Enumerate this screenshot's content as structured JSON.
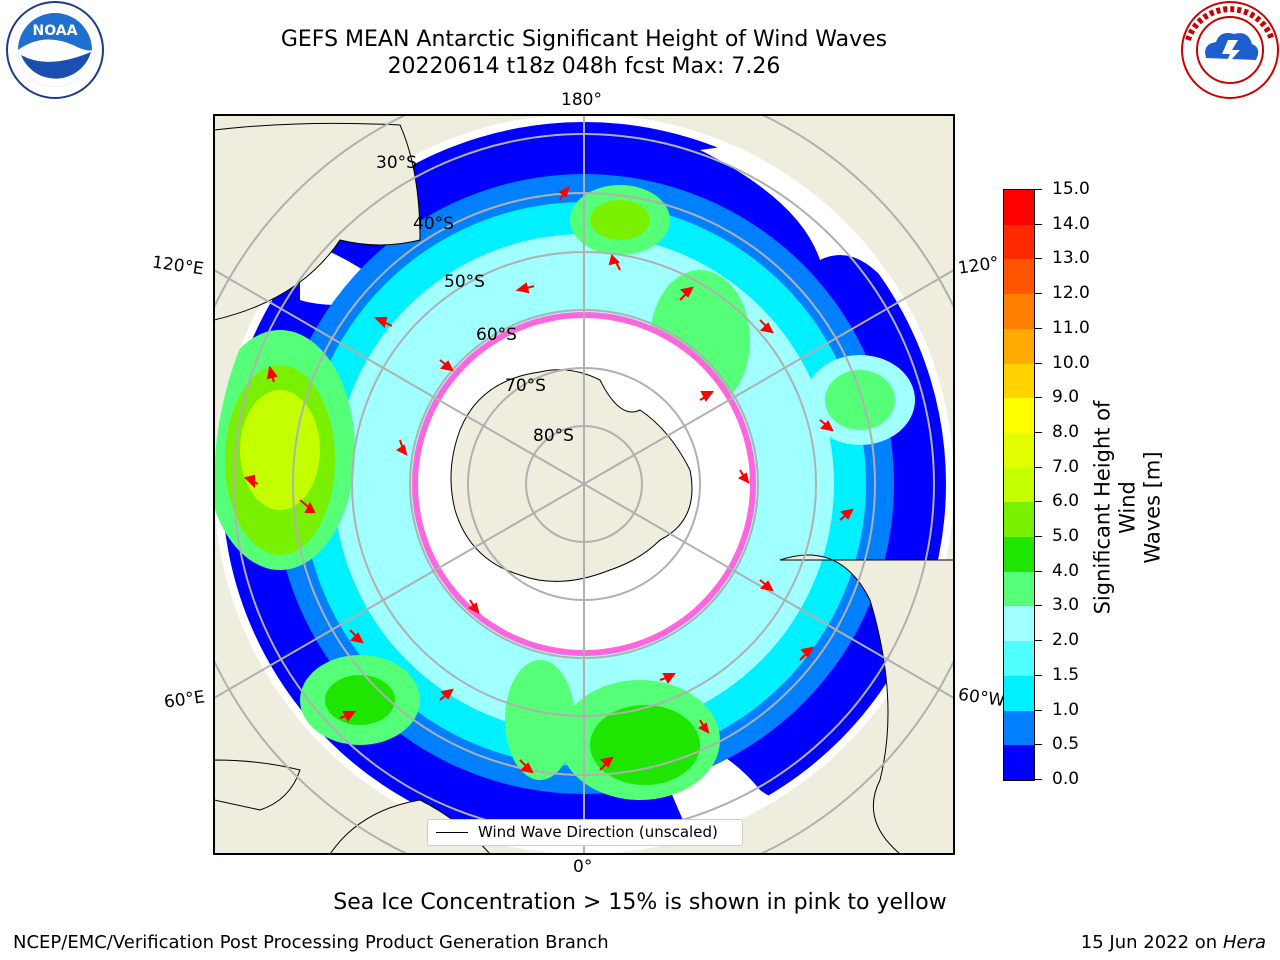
{
  "title_line1": "GEFS MEAN Antarctic Significant Height of Wind Waves",
  "title_line2": "20220614 t18z 048h fcst   Max: 7.26",
  "longitude_labels": {
    "top": "180°",
    "bottom": "0°",
    "left_upper": "120°E",
    "left_lower": "60°E",
    "right_upper": "120°",
    "right_lower": "60°W"
  },
  "latitude_labels": [
    "30°S",
    "40°S",
    "50°S",
    "60°S",
    "70°S",
    "80°S"
  ],
  "legend_label": "Wind Wave Direction (unscaled)",
  "colorbar": {
    "label_line1": "Significant Height of Wind",
    "label_line2": "Waves [m]",
    "ticks": [
      "15.0",
      "14.0",
      "13.0",
      "12.0",
      "11.0",
      "10.0",
      "9.0",
      "8.0",
      "7.0",
      "6.0",
      "5.0",
      "4.0",
      "3.0",
      "2.0",
      "1.5",
      "1.0",
      "0.5",
      "0.0"
    ],
    "colors": [
      "#ff0000",
      "#ff2a00",
      "#ff5500",
      "#ff8000",
      "#ffaa00",
      "#ffd200",
      "#ffff00",
      "#e1ff00",
      "#c3ff00",
      "#78f000",
      "#1ee600",
      "#55ff78",
      "#a0ffff",
      "#50ffff",
      "#00f0ff",
      "#0080ff",
      "#0000ff"
    ]
  },
  "caption": "Sea Ice Concentration > 15% is shown in pink to yellow",
  "footer_left": "NCEP/EMC/Verification Post Processing Product Generation Branch",
  "footer_date": "15 Jun 2022 on",
  "footer_host": "Hera",
  "colors": {
    "land": "#efedde",
    "ocean_low": "#0000ff",
    "arrow": "#ff0000",
    "ice_edge": "#ff33cc",
    "grid": "#b0b0b0"
  }
}
